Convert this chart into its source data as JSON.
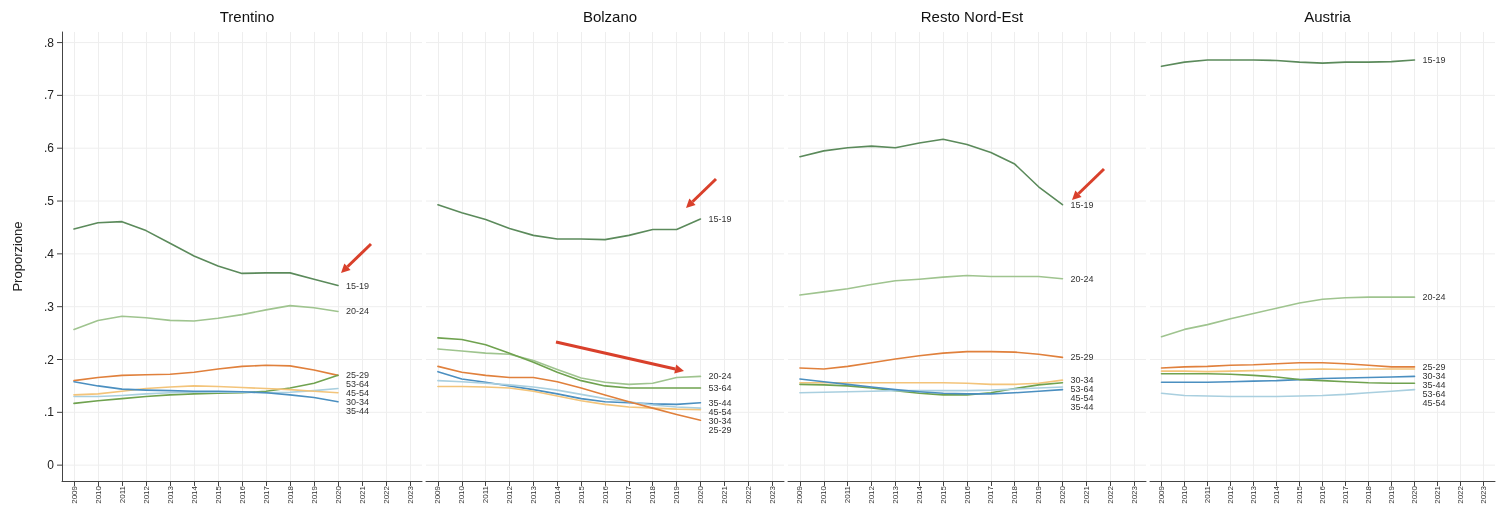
{
  "chart_data": [
    {
      "type": "line",
      "title": "Trentino",
      "ylabel": "Proporzione",
      "grid": true,
      "marker": "none",
      "x": [
        2009,
        2010,
        2011,
        2012,
        2013,
        2014,
        2015,
        2016,
        2017,
        2018,
        2019,
        2020
      ],
      "xlim": [
        2008.5,
        2023.5
      ],
      "xticks": [
        2009,
        2010,
        2011,
        2012,
        2013,
        2014,
        2015,
        2016,
        2017,
        2018,
        2019,
        2020,
        2021,
        2022,
        2023
      ],
      "ylim": [
        -0.03,
        0.82
      ],
      "yticks": [
        0,
        {
          "value": 0.1,
          "label": ".1"
        },
        {
          "value": 0.2,
          "label": ".2"
        },
        {
          "value": 0.3,
          "label": ".3"
        },
        {
          "value": 0.4,
          "label": ".4"
        },
        {
          "value": 0.5,
          "label": ".5"
        },
        {
          "value": 0.6,
          "label": ".6"
        },
        {
          "value": 0.7,
          "label": ".7"
        },
        {
          "value": 0.8,
          "label": ".8"
        }
      ],
      "series": [
        {
          "name": "15-19",
          "color": "#5b8a5b",
          "values": [
            0.447,
            0.459,
            0.461,
            0.444,
            0.42,
            0.396,
            0.377,
            0.363,
            0.364,
            0.364,
            0.352,
            0.34
          ]
        },
        {
          "name": "20-24",
          "color": "#9fc48f",
          "values": [
            0.257,
            0.274,
            0.282,
            0.279,
            0.274,
            0.273,
            0.278,
            0.285,
            0.294,
            0.302,
            0.298,
            0.291
          ]
        },
        {
          "name": "25-29",
          "color": "#e0803c",
          "values": [
            0.16,
            0.166,
            0.17,
            0.171,
            0.172,
            0.176,
            0.182,
            0.187,
            0.189,
            0.188,
            0.18,
            0.17
          ]
        },
        {
          "name": "53-64",
          "color": "#6fa24f",
          "values": [
            0.117,
            0.122,
            0.126,
            0.13,
            0.133,
            0.135,
            0.136,
            0.137,
            0.14,
            0.146,
            0.155,
            0.17
          ]
        },
        {
          "name": "45-54",
          "color": "#a9cfdf",
          "values": [
            0.13,
            0.13,
            0.132,
            0.135,
            0.137,
            0.138,
            0.138,
            0.138,
            0.137,
            0.138,
            0.141,
            0.145
          ]
        },
        {
          "name": "30-34",
          "color": "#f3c47a",
          "values": [
            0.133,
            0.135,
            0.14,
            0.145,
            0.148,
            0.15,
            0.149,
            0.147,
            0.145,
            0.143,
            0.14,
            0.137
          ]
        },
        {
          "name": "35-44",
          "color": "#4b8fc0",
          "values": [
            0.158,
            0.15,
            0.144,
            0.142,
            0.141,
            0.14,
            0.14,
            0.139,
            0.137,
            0.133,
            0.128,
            0.12
          ]
        }
      ],
      "tick_labels": "all"
    },
    {
      "type": "line",
      "title": "Bolzano",
      "grid": true,
      "marker": "none",
      "x": [
        2009,
        2010,
        2011,
        2012,
        2013,
        2014,
        2015,
        2016,
        2017,
        2018,
        2019,
        2020
      ],
      "xlim": [
        2008.5,
        2023.5
      ],
      "xticks": [
        2009,
        2010,
        2011,
        2012,
        2013,
        2014,
        2015,
        2016,
        2017,
        2018,
        2019,
        2020,
        2021,
        2022,
        2023
      ],
      "ylim": [
        -0.03,
        0.82
      ],
      "yticks": [
        0,
        0.1,
        0.2,
        0.3,
        0.4,
        0.5,
        0.6,
        0.7,
        0.8
      ],
      "series": [
        {
          "name": "15-19",
          "color": "#5b8a5b",
          "values": [
            0.493,
            0.478,
            0.465,
            0.448,
            0.435,
            0.428,
            0.428,
            0.427,
            0.435,
            0.446,
            0.446,
            0.466
          ]
        },
        {
          "name": "20-24",
          "color": "#9fc48f",
          "values": [
            0.22,
            0.216,
            0.212,
            0.21,
            0.198,
            0.181,
            0.165,
            0.157,
            0.153,
            0.155,
            0.166,
            0.168
          ]
        },
        {
          "name": "53-64",
          "color": "#6fa24f",
          "values": [
            0.241,
            0.238,
            0.228,
            0.212,
            0.195,
            0.176,
            0.16,
            0.15,
            0.146,
            0.146,
            0.146,
            0.146
          ]
        },
        {
          "name": "35-44",
          "color": "#4b8fc0",
          "values": [
            0.177,
            0.163,
            0.157,
            0.15,
            0.143,
            0.135,
            0.126,
            0.12,
            0.118,
            0.116,
            0.115,
            0.118
          ]
        },
        {
          "name": "45-54",
          "color": "#a9cfdf",
          "values": [
            0.16,
            0.158,
            0.155,
            0.152,
            0.148,
            0.142,
            0.134,
            0.126,
            0.12,
            0.114,
            0.11,
            0.108
          ]
        },
        {
          "name": "30-34",
          "color": "#f3c47a",
          "values": [
            0.149,
            0.149,
            0.148,
            0.146,
            0.14,
            0.131,
            0.122,
            0.115,
            0.11,
            0.108,
            0.106,
            0.105
          ]
        },
        {
          "name": "25-29",
          "color": "#e0803c",
          "values": [
            0.187,
            0.176,
            0.17,
            0.166,
            0.166,
            0.158,
            0.146,
            0.133,
            0.12,
            0.108,
            0.096,
            0.085
          ]
        }
      ],
      "tick_labels": "x"
    },
    {
      "type": "line",
      "title": "Resto Nord-Est",
      "grid": true,
      "marker": "none",
      "x": [
        2009,
        2010,
        2011,
        2012,
        2013,
        2014,
        2015,
        2016,
        2017,
        2018,
        2019,
        2020
      ],
      "xlim": [
        2008.5,
        2023.5
      ],
      "xticks": [
        2009,
        2010,
        2011,
        2012,
        2013,
        2014,
        2015,
        2016,
        2017,
        2018,
        2019,
        2020,
        2021,
        2022,
        2023
      ],
      "ylim": [
        -0.03,
        0.82
      ],
      "yticks": [
        0,
        0.1,
        0.2,
        0.3,
        0.4,
        0.5,
        0.6,
        0.7,
        0.8
      ],
      "series": [
        {
          "name": "15-19",
          "color": "#5b8a5b",
          "values": [
            0.584,
            0.595,
            0.601,
            0.604,
            0.601,
            0.61,
            0.617,
            0.607,
            0.592,
            0.57,
            0.527,
            0.493
          ]
        },
        {
          "name": "20-24",
          "color": "#9fc48f",
          "values": [
            0.322,
            0.328,
            0.334,
            0.342,
            0.349,
            0.352,
            0.356,
            0.359,
            0.357,
            0.357,
            0.357,
            0.353
          ]
        },
        {
          "name": "25-29",
          "color": "#e0803c",
          "values": [
            0.184,
            0.182,
            0.187,
            0.194,
            0.201,
            0.207,
            0.212,
            0.215,
            0.215,
            0.214,
            0.21,
            0.204
          ]
        },
        {
          "name": "30-34",
          "color": "#f3c47a",
          "values": [
            0.156,
            0.156,
            0.156,
            0.156,
            0.156,
            0.156,
            0.156,
            0.155,
            0.153,
            0.153,
            0.155,
            0.161
          ]
        },
        {
          "name": "53-64",
          "color": "#6fa24f",
          "values": [
            0.153,
            0.152,
            0.15,
            0.146,
            0.141,
            0.136,
            0.133,
            0.133,
            0.137,
            0.145,
            0.152,
            0.156
          ]
        },
        {
          "name": "45-54",
          "color": "#a9cfdf",
          "values": [
            0.137,
            0.138,
            0.139,
            0.14,
            0.141,
            0.141,
            0.141,
            0.141,
            0.142,
            0.144,
            0.146,
            0.148
          ]
        },
        {
          "name": "35-44",
          "color": "#4b8fc0",
          "values": [
            0.163,
            0.158,
            0.153,
            0.148,
            0.143,
            0.139,
            0.136,
            0.135,
            0.135,
            0.137,
            0.14,
            0.143
          ]
        }
      ],
      "tick_labels": "x"
    },
    {
      "type": "line",
      "title": "Austria",
      "grid": true,
      "marker": "none",
      "x": [
        2009,
        2010,
        2011,
        2012,
        2013,
        2014,
        2015,
        2016,
        2017,
        2018,
        2019,
        2020
      ],
      "xlim": [
        2008.5,
        2023.5
      ],
      "xticks": [
        2009,
        2010,
        2011,
        2012,
        2013,
        2014,
        2015,
        2016,
        2017,
        2018,
        2019,
        2020,
        2021,
        2022,
        2023
      ],
      "ylim": [
        -0.03,
        0.82
      ],
      "yticks": [
        0,
        0.1,
        0.2,
        0.3,
        0.4,
        0.5,
        0.6,
        0.7,
        0.8
      ],
      "series": [
        {
          "name": "15-19",
          "color": "#5b8a5b",
          "values": [
            0.755,
            0.763,
            0.767,
            0.767,
            0.767,
            0.766,
            0.763,
            0.761,
            0.763,
            0.763,
            0.764,
            0.767
          ]
        },
        {
          "name": "20-24",
          "color": "#9fc48f",
          "values": [
            0.243,
            0.257,
            0.266,
            0.277,
            0.287,
            0.297,
            0.307,
            0.314,
            0.317,
            0.318,
            0.318,
            0.318
          ]
        },
        {
          "name": "25-29",
          "color": "#e0803c",
          "values": [
            0.184,
            0.186,
            0.187,
            0.189,
            0.19,
            0.192,
            0.194,
            0.194,
            0.192,
            0.189,
            0.186,
            0.186
          ]
        },
        {
          "name": "30-34",
          "color": "#f3c47a",
          "values": [
            0.178,
            0.178,
            0.177,
            0.178,
            0.179,
            0.18,
            0.181,
            0.182,
            0.181,
            0.182,
            0.182,
            0.182
          ]
        },
        {
          "name": "35-44",
          "color": "#4b8fc0",
          "values": [
            0.157,
            0.157,
            0.157,
            0.158,
            0.159,
            0.16,
            0.162,
            0.164,
            0.165,
            0.166,
            0.167,
            0.168
          ]
        },
        {
          "name": "53-64",
          "color": "#6fa24f",
          "values": [
            0.173,
            0.173,
            0.173,
            0.172,
            0.17,
            0.167,
            0.162,
            0.16,
            0.158,
            0.156,
            0.155,
            0.155
          ]
        },
        {
          "name": "45-54",
          "color": "#a9cfdf",
          "values": [
            0.136,
            0.132,
            0.131,
            0.13,
            0.13,
            0.13,
            0.131,
            0.132,
            0.134,
            0.137,
            0.14,
            0.143
          ]
        }
      ],
      "tick_labels": "x"
    }
  ]
}
